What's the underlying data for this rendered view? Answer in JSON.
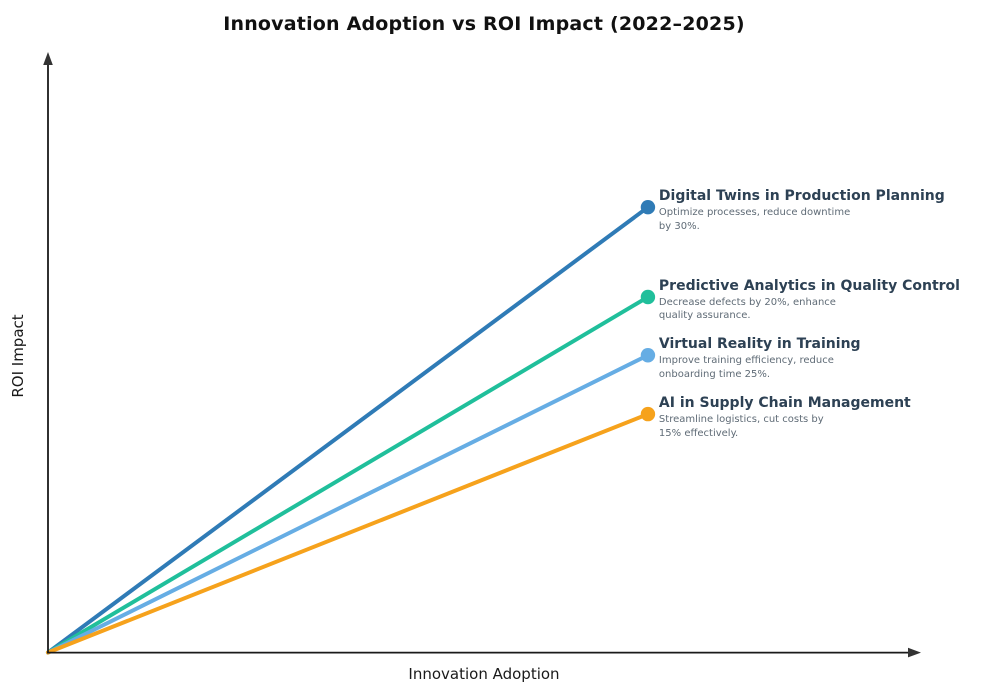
{
  "title": "Innovation Adoption vs ROI Impact (2022–2025)",
  "axes": {
    "x_label": "Innovation Adoption",
    "y_label": "ROI Impact",
    "ticks": "none",
    "arrows": "x-right and y-up arrowheads"
  },
  "colors": {
    "background": "#ffffff",
    "title_text": "#111111",
    "axis_line": "#1a1a1a",
    "annotation_title": "#2d4154",
    "annotation_desc": "#5f6b76"
  },
  "chart_data": {
    "type": "line",
    "title": "Innovation Adoption vs ROI Impact (2022–2025)",
    "xlabel": "Innovation Adoption",
    "ylabel": "ROI Impact",
    "grid": false,
    "legend_position": "inline-right-annotations",
    "axis_ranges_note": "no numeric ticks shown; endpoints given as fraction of each axis length from origin",
    "series": [
      {
        "name": "Digital Twins in Production Planning",
        "desc_line1": "Optimize processes, reduce downtime",
        "desc_line2": "by 30%.",
        "roi_mention": "30%",
        "color": "#2f7bb6",
        "x": [
          0,
          0.688
        ],
        "y": [
          0,
          0.749
        ]
      },
      {
        "name": "Predictive Analytics in Quality Control",
        "desc_line1": "Decrease defects by 20%, enhance",
        "desc_line2": "quality assurance.",
        "roi_mention": "20%",
        "color": "#20bf9b",
        "x": [
          0,
          0.688
        ],
        "y": [
          0,
          0.598
        ]
      },
      {
        "name": "Virtual Reality in Training",
        "desc_line1": "Improve training efficiency, reduce",
        "desc_line2": "onboarding time 25%.",
        "roi_mention": "25%",
        "color": "#66ade4",
        "x": [
          0,
          0.688
        ],
        "y": [
          0,
          0.5
        ]
      },
      {
        "name": "AI in Supply Chain Management",
        "desc_line1": "Streamline logistics, cut costs by",
        "desc_line2": "15% effectively.",
        "roi_mention": "15%",
        "color": "#f6a21c",
        "x": [
          0,
          0.688
        ],
        "y": [
          0,
          0.401
        ]
      }
    ]
  }
}
